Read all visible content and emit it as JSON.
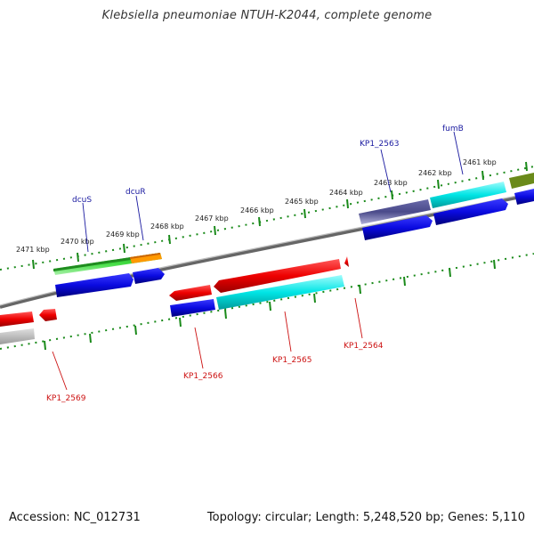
{
  "title": "Klebsiella pneumoniae NTUH-K2044, complete genome",
  "accession_text": "Accession: NC_012731",
  "stats_text": "Topology: circular; Length: 5,248,520 bp; Genes: 5,110",
  "ticks": {
    "t2471": "2471 kbp",
    "t2470": "2470 kbp",
    "t2469": "2469 kbp",
    "t2468": "2468 kbp",
    "t2467": "2467 kbp",
    "t2466": "2466 kbp",
    "t2465": "2465 kbp",
    "t2464": "2464 kbp",
    "t2463": "2463 kbp",
    "t2462": "2462 kbp",
    "t2461": "2461 kbp"
  },
  "genes": {
    "dcuS": "dcuS",
    "dcuR": "dcuR",
    "KP1_2563": "KP1_2563",
    "fumB": "fumB",
    "KP1_2569": "KP1_2569",
    "KP1_2566": "KP1_2566",
    "KP1_2565": "KP1_2565",
    "KP1_2564": "KP1_2564"
  },
  "colors": {
    "backbone": "#7a7a7a",
    "tick": "#1a8a1a",
    "blue": "#0a0ae0",
    "red": "#ee0000",
    "cyan": "#00e5e5",
    "green": "#33cc33",
    "orange": "#ff9900",
    "slate": "#4a4a8a",
    "olive": "#6a8a1a",
    "gray": "#b0b0b0"
  }
}
